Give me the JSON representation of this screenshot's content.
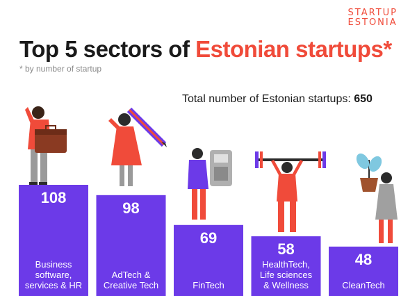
{
  "logo": {
    "line1": "STARTUP",
    "line2": "ESTONIA",
    "color": "#f04b3a"
  },
  "title": {
    "prefix": "Top 5 sectors of ",
    "highlight": "Estonian startups*",
    "highlight_color": "#f04b3a"
  },
  "subtitle": "* by number of startup",
  "total": {
    "label": "Total number of Estonian startups:",
    "value": "650"
  },
  "colors": {
    "bar": "#6c3ae8",
    "figure_red": "#f04b3a",
    "dark": "#2b2b2b"
  },
  "chart_data": {
    "type": "bar",
    "title": "Top 5 sectors of Estonian startups*",
    "categories": [
      "Business software, services & HR",
      "AdTech & Creative Tech",
      "FinTech",
      "HealthTech, Life sciences & Wellness",
      "CleanTech"
    ],
    "category_lines": [
      [
        "Business",
        "software,",
        "services & HR"
      ],
      [
        "AdTech &",
        "Creative Tech"
      ],
      [
        "FinTech"
      ],
      [
        "HealthTech,",
        "Life sciences",
        "& Wellness"
      ],
      [
        "CleanTech"
      ]
    ],
    "values": [
      108,
      98,
      69,
      58,
      48
    ],
    "ylim": [
      0,
      108
    ],
    "xlabel": "",
    "ylabel": ""
  }
}
